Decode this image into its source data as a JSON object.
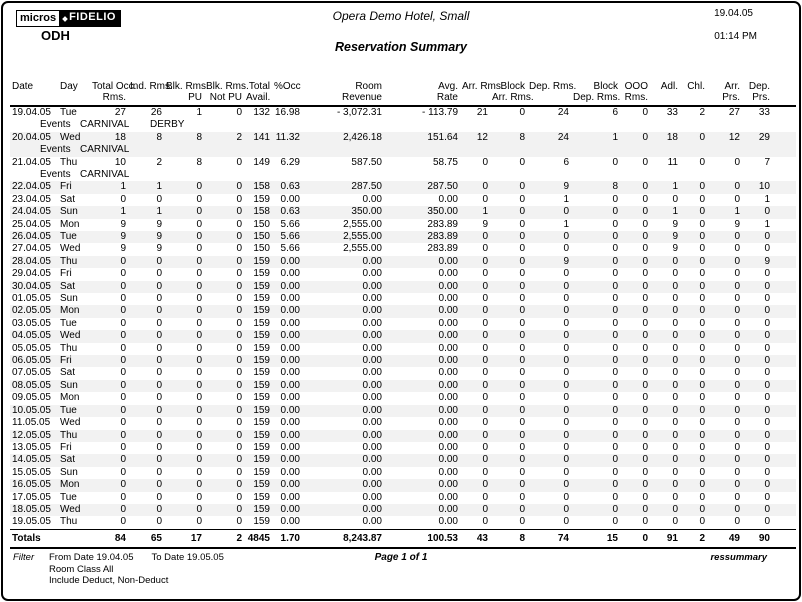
{
  "report": {
    "logo_micros": "micros",
    "logo_fidelio": "FIDELIO",
    "property_code": "ODH",
    "hotel_name": "Opera Demo Hotel, Small",
    "title": "Reservation Summary",
    "print_date": "19.04.05",
    "print_time": "01:14 PM"
  },
  "colors": {
    "row_shade": "#f2f2f2",
    "border": "#000000"
  },
  "table": {
    "events_label": "Events",
    "columns": [
      {
        "id": "date",
        "lines": [
          "Date"
        ],
        "align": "left"
      },
      {
        "id": "day",
        "lines": [
          "Day"
        ],
        "align": "left"
      },
      {
        "id": "total_occ_rms",
        "lines": [
          "Total Occ.",
          "Rms."
        ],
        "align": "right"
      },
      {
        "id": "ind_rms",
        "lines": [
          "Ind. Rms."
        ],
        "align": "right"
      },
      {
        "id": "blk_rms_pu",
        "lines": [
          "Blk. Rms.",
          "PU"
        ],
        "align": "right"
      },
      {
        "id": "blk_rms_not_pu",
        "lines": [
          "Blk. Rms.",
          "Not PU"
        ],
        "align": "right"
      },
      {
        "id": "total_avail",
        "lines": [
          "Total",
          "Avail."
        ],
        "align": "right"
      },
      {
        "id": "pct_occ",
        "lines": [
          "%Occ"
        ],
        "align": "right"
      },
      {
        "id": "room_revenue",
        "lines": [
          "Room",
          "Revenue"
        ],
        "align": "right"
      },
      {
        "id": "avg_rate",
        "lines": [
          "Avg.",
          "Rate"
        ],
        "align": "right"
      },
      {
        "id": "arr_rms",
        "lines": [
          "Arr. Rms."
        ],
        "align": "right"
      },
      {
        "id": "block_arr_rms",
        "lines": [
          "Block",
          "Arr. Rms."
        ],
        "align": "right"
      },
      {
        "id": "dep_rms",
        "lines": [
          "Dep. Rms."
        ],
        "align": "right"
      },
      {
        "id": "block_dep_rms",
        "lines": [
          "Block",
          "Dep. Rms."
        ],
        "align": "right"
      },
      {
        "id": "ooo_rms",
        "lines": [
          "OOO",
          "Rms."
        ],
        "align": "right"
      },
      {
        "id": "adl",
        "lines": [
          "Adl."
        ],
        "align": "right"
      },
      {
        "id": "chl",
        "lines": [
          "Chl."
        ],
        "align": "right"
      },
      {
        "id": "arr_prs",
        "lines": [
          "Arr.",
          "Prs."
        ],
        "align": "right"
      },
      {
        "id": "dep_prs",
        "lines": [
          "Dep.",
          "Prs."
        ],
        "align": "right"
      }
    ],
    "rows": [
      {
        "date": "19.04.05",
        "day": "Tue",
        "values": [
          "27",
          "26",
          "1",
          "0",
          "132",
          "16.98",
          "- 3,072.31",
          "- 113.79",
          "21",
          "0",
          "24",
          "6",
          "0",
          "33",
          "2",
          "27",
          "33"
        ],
        "events": [
          "CARNIVAL",
          "DERBY"
        ]
      },
      {
        "date": "20.04.05",
        "day": "Wed",
        "values": [
          "18",
          "8",
          "8",
          "2",
          "141",
          "11.32",
          "2,426.18",
          "151.64",
          "12",
          "8",
          "24",
          "1",
          "0",
          "18",
          "0",
          "12",
          "29"
        ],
        "events": [
          "CARNIVAL"
        ]
      },
      {
        "date": "21.04.05",
        "day": "Thu",
        "values": [
          "10",
          "2",
          "8",
          "0",
          "149",
          "6.29",
          "587.50",
          "58.75",
          "0",
          "0",
          "6",
          "0",
          "0",
          "11",
          "0",
          "0",
          "7"
        ],
        "events": [
          "CARNIVAL"
        ]
      },
      {
        "date": "22.04.05",
        "day": "Fri",
        "values": [
          "1",
          "1",
          "0",
          "0",
          "158",
          "0.63",
          "287.50",
          "287.50",
          "0",
          "0",
          "9",
          "8",
          "0",
          "1",
          "0",
          "0",
          "10"
        ]
      },
      {
        "date": "23.04.05",
        "day": "Sat",
        "values": [
          "0",
          "0",
          "0",
          "0",
          "159",
          "0.00",
          "0.00",
          "0.00",
          "0",
          "0",
          "1",
          "0",
          "0",
          "0",
          "0",
          "0",
          "1"
        ]
      },
      {
        "date": "24.04.05",
        "day": "Sun",
        "values": [
          "1",
          "1",
          "0",
          "0",
          "158",
          "0.63",
          "350.00",
          "350.00",
          "1",
          "0",
          "0",
          "0",
          "0",
          "1",
          "0",
          "1",
          "0"
        ]
      },
      {
        "date": "25.04.05",
        "day": "Mon",
        "values": [
          "9",
          "9",
          "0",
          "0",
          "150",
          "5.66",
          "2,555.00",
          "283.89",
          "9",
          "0",
          "1",
          "0",
          "0",
          "9",
          "0",
          "9",
          "1"
        ]
      },
      {
        "date": "26.04.05",
        "day": "Tue",
        "values": [
          "9",
          "9",
          "0",
          "0",
          "150",
          "5.66",
          "2,555.00",
          "283.89",
          "0",
          "0",
          "0",
          "0",
          "0",
          "9",
          "0",
          "0",
          "0"
        ]
      },
      {
        "date": "27.04.05",
        "day": "Wed",
        "values": [
          "9",
          "9",
          "0",
          "0",
          "150",
          "5.66",
          "2,555.00",
          "283.89",
          "0",
          "0",
          "0",
          "0",
          "0",
          "9",
          "0",
          "0",
          "0"
        ]
      },
      {
        "date": "28.04.05",
        "day": "Thu",
        "values": [
          "0",
          "0",
          "0",
          "0",
          "159",
          "0.00",
          "0.00",
          "0.00",
          "0",
          "0",
          "9",
          "0",
          "0",
          "0",
          "0",
          "0",
          "9"
        ]
      },
      {
        "date": "29.04.05",
        "day": "Fri",
        "values": [
          "0",
          "0",
          "0",
          "0",
          "159",
          "0.00",
          "0.00",
          "0.00",
          "0",
          "0",
          "0",
          "0",
          "0",
          "0",
          "0",
          "0",
          "0"
        ]
      },
      {
        "date": "30.04.05",
        "day": "Sat",
        "values": [
          "0",
          "0",
          "0",
          "0",
          "159",
          "0.00",
          "0.00",
          "0.00",
          "0",
          "0",
          "0",
          "0",
          "0",
          "0",
          "0",
          "0",
          "0"
        ]
      },
      {
        "date": "01.05.05",
        "day": "Sun",
        "values": [
          "0",
          "0",
          "0",
          "0",
          "159",
          "0.00",
          "0.00",
          "0.00",
          "0",
          "0",
          "0",
          "0",
          "0",
          "0",
          "0",
          "0",
          "0"
        ]
      },
      {
        "date": "02.05.05",
        "day": "Mon",
        "values": [
          "0",
          "0",
          "0",
          "0",
          "159",
          "0.00",
          "0.00",
          "0.00",
          "0",
          "0",
          "0",
          "0",
          "0",
          "0",
          "0",
          "0",
          "0"
        ]
      },
      {
        "date": "03.05.05",
        "day": "Tue",
        "values": [
          "0",
          "0",
          "0",
          "0",
          "159",
          "0.00",
          "0.00",
          "0.00",
          "0",
          "0",
          "0",
          "0",
          "0",
          "0",
          "0",
          "0",
          "0"
        ]
      },
      {
        "date": "04.05.05",
        "day": "Wed",
        "values": [
          "0",
          "0",
          "0",
          "0",
          "159",
          "0.00",
          "0.00",
          "0.00",
          "0",
          "0",
          "0",
          "0",
          "0",
          "0",
          "0",
          "0",
          "0"
        ]
      },
      {
        "date": "05.05.05",
        "day": "Thu",
        "values": [
          "0",
          "0",
          "0",
          "0",
          "159",
          "0.00",
          "0.00",
          "0.00",
          "0",
          "0",
          "0",
          "0",
          "0",
          "0",
          "0",
          "0",
          "0"
        ]
      },
      {
        "date": "06.05.05",
        "day": "Fri",
        "values": [
          "0",
          "0",
          "0",
          "0",
          "159",
          "0.00",
          "0.00",
          "0.00",
          "0",
          "0",
          "0",
          "0",
          "0",
          "0",
          "0",
          "0",
          "0"
        ]
      },
      {
        "date": "07.05.05",
        "day": "Sat",
        "values": [
          "0",
          "0",
          "0",
          "0",
          "159",
          "0.00",
          "0.00",
          "0.00",
          "0",
          "0",
          "0",
          "0",
          "0",
          "0",
          "0",
          "0",
          "0"
        ]
      },
      {
        "date": "08.05.05",
        "day": "Sun",
        "values": [
          "0",
          "0",
          "0",
          "0",
          "159",
          "0.00",
          "0.00",
          "0.00",
          "0",
          "0",
          "0",
          "0",
          "0",
          "0",
          "0",
          "0",
          "0"
        ]
      },
      {
        "date": "09.05.05",
        "day": "Mon",
        "values": [
          "0",
          "0",
          "0",
          "0",
          "159",
          "0.00",
          "0.00",
          "0.00",
          "0",
          "0",
          "0",
          "0",
          "0",
          "0",
          "0",
          "0",
          "0"
        ]
      },
      {
        "date": "10.05.05",
        "day": "Tue",
        "values": [
          "0",
          "0",
          "0",
          "0",
          "159",
          "0.00",
          "0.00",
          "0.00",
          "0",
          "0",
          "0",
          "0",
          "0",
          "0",
          "0",
          "0",
          "0"
        ]
      },
      {
        "date": "11.05.05",
        "day": "Wed",
        "values": [
          "0",
          "0",
          "0",
          "0",
          "159",
          "0.00",
          "0.00",
          "0.00",
          "0",
          "0",
          "0",
          "0",
          "0",
          "0",
          "0",
          "0",
          "0"
        ]
      },
      {
        "date": "12.05.05",
        "day": "Thu",
        "values": [
          "0",
          "0",
          "0",
          "0",
          "159",
          "0.00",
          "0.00",
          "0.00",
          "0",
          "0",
          "0",
          "0",
          "0",
          "0",
          "0",
          "0",
          "0"
        ]
      },
      {
        "date": "13.05.05",
        "day": "Fri",
        "values": [
          "0",
          "0",
          "0",
          "0",
          "159",
          "0.00",
          "0.00",
          "0.00",
          "0",
          "0",
          "0",
          "0",
          "0",
          "0",
          "0",
          "0",
          "0"
        ]
      },
      {
        "date": "14.05.05",
        "day": "Sat",
        "values": [
          "0",
          "0",
          "0",
          "0",
          "159",
          "0.00",
          "0.00",
          "0.00",
          "0",
          "0",
          "0",
          "0",
          "0",
          "0",
          "0",
          "0",
          "0"
        ]
      },
      {
        "date": "15.05.05",
        "day": "Sun",
        "values": [
          "0",
          "0",
          "0",
          "0",
          "159",
          "0.00",
          "0.00",
          "0.00",
          "0",
          "0",
          "0",
          "0",
          "0",
          "0",
          "0",
          "0",
          "0"
        ]
      },
      {
        "date": "16.05.05",
        "day": "Mon",
        "values": [
          "0",
          "0",
          "0",
          "0",
          "159",
          "0.00",
          "0.00",
          "0.00",
          "0",
          "0",
          "0",
          "0",
          "0",
          "0",
          "0",
          "0",
          "0"
        ]
      },
      {
        "date": "17.05.05",
        "day": "Tue",
        "values": [
          "0",
          "0",
          "0",
          "0",
          "159",
          "0.00",
          "0.00",
          "0.00",
          "0",
          "0",
          "0",
          "0",
          "0",
          "0",
          "0",
          "0",
          "0"
        ]
      },
      {
        "date": "18.05.05",
        "day": "Wed",
        "values": [
          "0",
          "0",
          "0",
          "0",
          "159",
          "0.00",
          "0.00",
          "0.00",
          "0",
          "0",
          "0",
          "0",
          "0",
          "0",
          "0",
          "0",
          "0"
        ]
      },
      {
        "date": "19.05.05",
        "day": "Thu",
        "values": [
          "0",
          "0",
          "0",
          "0",
          "159",
          "0.00",
          "0.00",
          "0.00",
          "0",
          "0",
          "0",
          "0",
          "0",
          "0",
          "0",
          "0",
          "0"
        ]
      }
    ],
    "totals": {
      "label": "Totals",
      "values": [
        "84",
        "65",
        "17",
        "2",
        "4845",
        "1.70",
        "8,243.87",
        "100.53",
        "43",
        "8",
        "74",
        "15",
        "0",
        "91",
        "2",
        "49",
        "90"
      ]
    }
  },
  "footer": {
    "filter_label": "Filter",
    "from_date": "From Date 19.04.05",
    "to_date": "To Date 19.05.05",
    "room_class": "Room Class All",
    "include": "Include Deduct, Non-Deduct",
    "page": "Page 1 of 1",
    "report_id": "ressummary"
  }
}
